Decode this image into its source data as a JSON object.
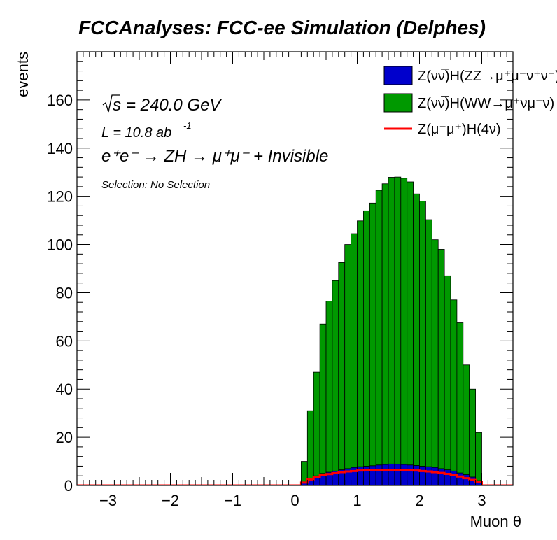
{
  "chart_data": {
    "type": "bar",
    "title": "FCCAnalyses: FCC-ee Simulation (Delphes)",
    "xlabel": "Muon θ",
    "ylabel": "events",
    "xlim": [
      -3.5,
      3.5
    ],
    "ylim": [
      0,
      180
    ],
    "x_ticks": [
      -3,
      -2,
      -1,
      0,
      1,
      2,
      3
    ],
    "x_tick_labels": [
      "−3",
      "−2",
      "−1",
      "0",
      "1",
      "2",
      "3"
    ],
    "y_ticks": [
      0,
      20,
      40,
      60,
      80,
      100,
      120,
      140,
      160
    ],
    "y_tick_labels": [
      "0",
      "20",
      "40",
      "60",
      "80",
      "100",
      "120",
      "140",
      "160"
    ],
    "bin_width": 0.1,
    "bin_starts": [
      0.1,
      0.2,
      0.3,
      0.4,
      0.5,
      0.6,
      0.7,
      0.8,
      0.9,
      1.0,
      1.1,
      1.2,
      1.3,
      1.4,
      1.5,
      1.6,
      1.7,
      1.8,
      1.9,
      2.0,
      2.1,
      2.2,
      2.3,
      2.4,
      2.5,
      2.6,
      2.7,
      2.8,
      2.9
    ],
    "series": [
      {
        "name": "Z(νν̅)H(ZZ→μ⁺μ⁻ν⁺ν⁻)",
        "style": "stack-fill",
        "color": "#0000cc",
        "values": [
          1.5,
          3.0,
          4.0,
          5.0,
          5.5,
          6.0,
          6.5,
          7.0,
          7.5,
          7.8,
          8.0,
          8.2,
          8.5,
          8.7,
          8.9,
          8.8,
          8.7,
          8.5,
          8.3,
          8.0,
          7.8,
          7.5,
          7.0,
          6.5,
          6.0,
          5.2,
          4.5,
          3.5,
          2.0
        ]
      },
      {
        "name": "Z(νν̅)H(WW→μ⁺νμ⁻ν)",
        "style": "stack-fill",
        "color": "#009900",
        "values": [
          8.5,
          28,
          43,
          62,
          71,
          79,
          86,
          93,
          97,
          102,
          106,
          109,
          114,
          116.5,
          119,
          119.2,
          118.8,
          117.5,
          112.7,
          110,
          102.5,
          94.5,
          91,
          80.5,
          71,
          62.3,
          45.5,
          36.5,
          20
        ]
      },
      {
        "name": "Z(μ⁻μ⁺)H(4ν)",
        "style": "line",
        "color": "#ff0000",
        "values": [
          1.2,
          2.5,
          3.5,
          4.2,
          4.7,
          5.1,
          5.5,
          5.8,
          6.0,
          6.2,
          6.3,
          6.4,
          6.5,
          6.5,
          6.5,
          6.5,
          6.4,
          6.3,
          6.2,
          6.0,
          5.8,
          5.5,
          5.2,
          4.8,
          4.3,
          3.7,
          3.0,
          2.3,
          1.4
        ]
      }
    ],
    "legend_position": "top-right",
    "grid": false
  },
  "annotations": {
    "sqrt_s": "s",
    "energy": "= 240.0 GeV",
    "lumi_prefix": "L = 10.8 ab",
    "lumi_exp": "-1",
    "process": "e⁺e⁻ → ZH → μ⁺μ⁻ + Invisible",
    "selection": "Selection: No Selection"
  },
  "legend": [
    {
      "label": "Z(νν̅)H(ZZ→μ⁺μ⁻ν⁺ν⁻)",
      "color": "#0000cc",
      "kind": "box"
    },
    {
      "label": "Z(νν̅)H(WW→μ⁺νμ⁻ν)",
      "color": "#009900",
      "kind": "box"
    },
    {
      "label": "Z(μ⁻μ⁺)H(4ν)",
      "color": "#ff0000",
      "kind": "line"
    }
  ]
}
